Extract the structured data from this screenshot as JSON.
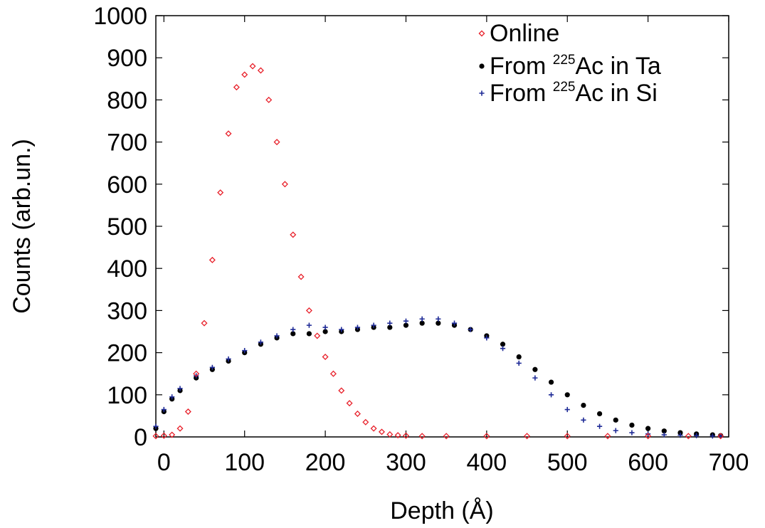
{
  "chart_data": {
    "type": "scatter",
    "title": "",
    "xlabel": "Depth (Å)",
    "ylabel": "Counts (arb.un.)",
    "xlim": [
      -10,
      700
    ],
    "ylim": [
      0,
      1000
    ],
    "xticks": [
      0,
      100,
      200,
      300,
      400,
      500,
      600,
      700
    ],
    "yticks": [
      0,
      100,
      200,
      300,
      400,
      500,
      600,
      700,
      800,
      900,
      1000
    ],
    "grid": false,
    "legend_position": "top-right",
    "series": [
      {
        "name": "Online",
        "marker": "diamond-open",
        "color": "#e8202a",
        "x": [
          -10,
          0,
          10,
          20,
          30,
          40,
          50,
          60,
          70,
          80,
          90,
          100,
          110,
          120,
          130,
          140,
          150,
          160,
          170,
          180,
          190,
          200,
          210,
          220,
          230,
          240,
          250,
          260,
          270,
          280,
          290,
          300,
          320,
          350,
          400,
          450,
          500,
          550,
          600,
          650,
          690
        ],
        "y": [
          2,
          3,
          5,
          20,
          60,
          150,
          270,
          420,
          580,
          720,
          830,
          860,
          880,
          870,
          800,
          700,
          600,
          480,
          380,
          300,
          240,
          190,
          150,
          110,
          80,
          55,
          35,
          20,
          12,
          6,
          4,
          3,
          2,
          2,
          2,
          2,
          2,
          2,
          2,
          2,
          2
        ]
      },
      {
        "name": "From ²²⁵Ac in Ta",
        "label_parts": [
          "From ",
          "225",
          "Ac in Ta"
        ],
        "marker": "circle-filled",
        "color": "#000000",
        "x": [
          -10,
          0,
          10,
          20,
          40,
          60,
          80,
          100,
          120,
          140,
          160,
          180,
          200,
          220,
          240,
          260,
          280,
          300,
          320,
          340,
          360,
          380,
          400,
          420,
          440,
          460,
          480,
          500,
          520,
          540,
          560,
          580,
          600,
          620,
          640,
          660,
          680,
          690
        ],
        "y": [
          20,
          60,
          90,
          110,
          140,
          160,
          180,
          200,
          220,
          235,
          245,
          245,
          250,
          250,
          255,
          260,
          260,
          265,
          270,
          270,
          265,
          255,
          240,
          220,
          190,
          160,
          130,
          100,
          75,
          55,
          40,
          28,
          20,
          14,
          10,
          7,
          5,
          3
        ]
      },
      {
        "name": "From ²²⁵Ac in Si",
        "label_parts": [
          "From ",
          "225",
          "Ac in Si"
        ],
        "marker": "plus",
        "color": "#1e2a96",
        "x": [
          -10,
          0,
          10,
          20,
          40,
          60,
          80,
          100,
          120,
          140,
          160,
          180,
          200,
          220,
          240,
          260,
          280,
          300,
          320,
          340,
          360,
          380,
          400,
          420,
          440,
          460,
          480,
          500,
          520,
          540,
          560,
          580,
          600,
          620,
          640,
          660,
          680,
          690
        ],
        "y": [
          25,
          65,
          95,
          115,
          145,
          165,
          185,
          205,
          225,
          240,
          255,
          265,
          260,
          255,
          260,
          265,
          270,
          275,
          280,
          280,
          270,
          255,
          235,
          210,
          175,
          140,
          100,
          65,
          40,
          25,
          15,
          10,
          7,
          5,
          4,
          3,
          2,
          2
        ]
      }
    ]
  }
}
